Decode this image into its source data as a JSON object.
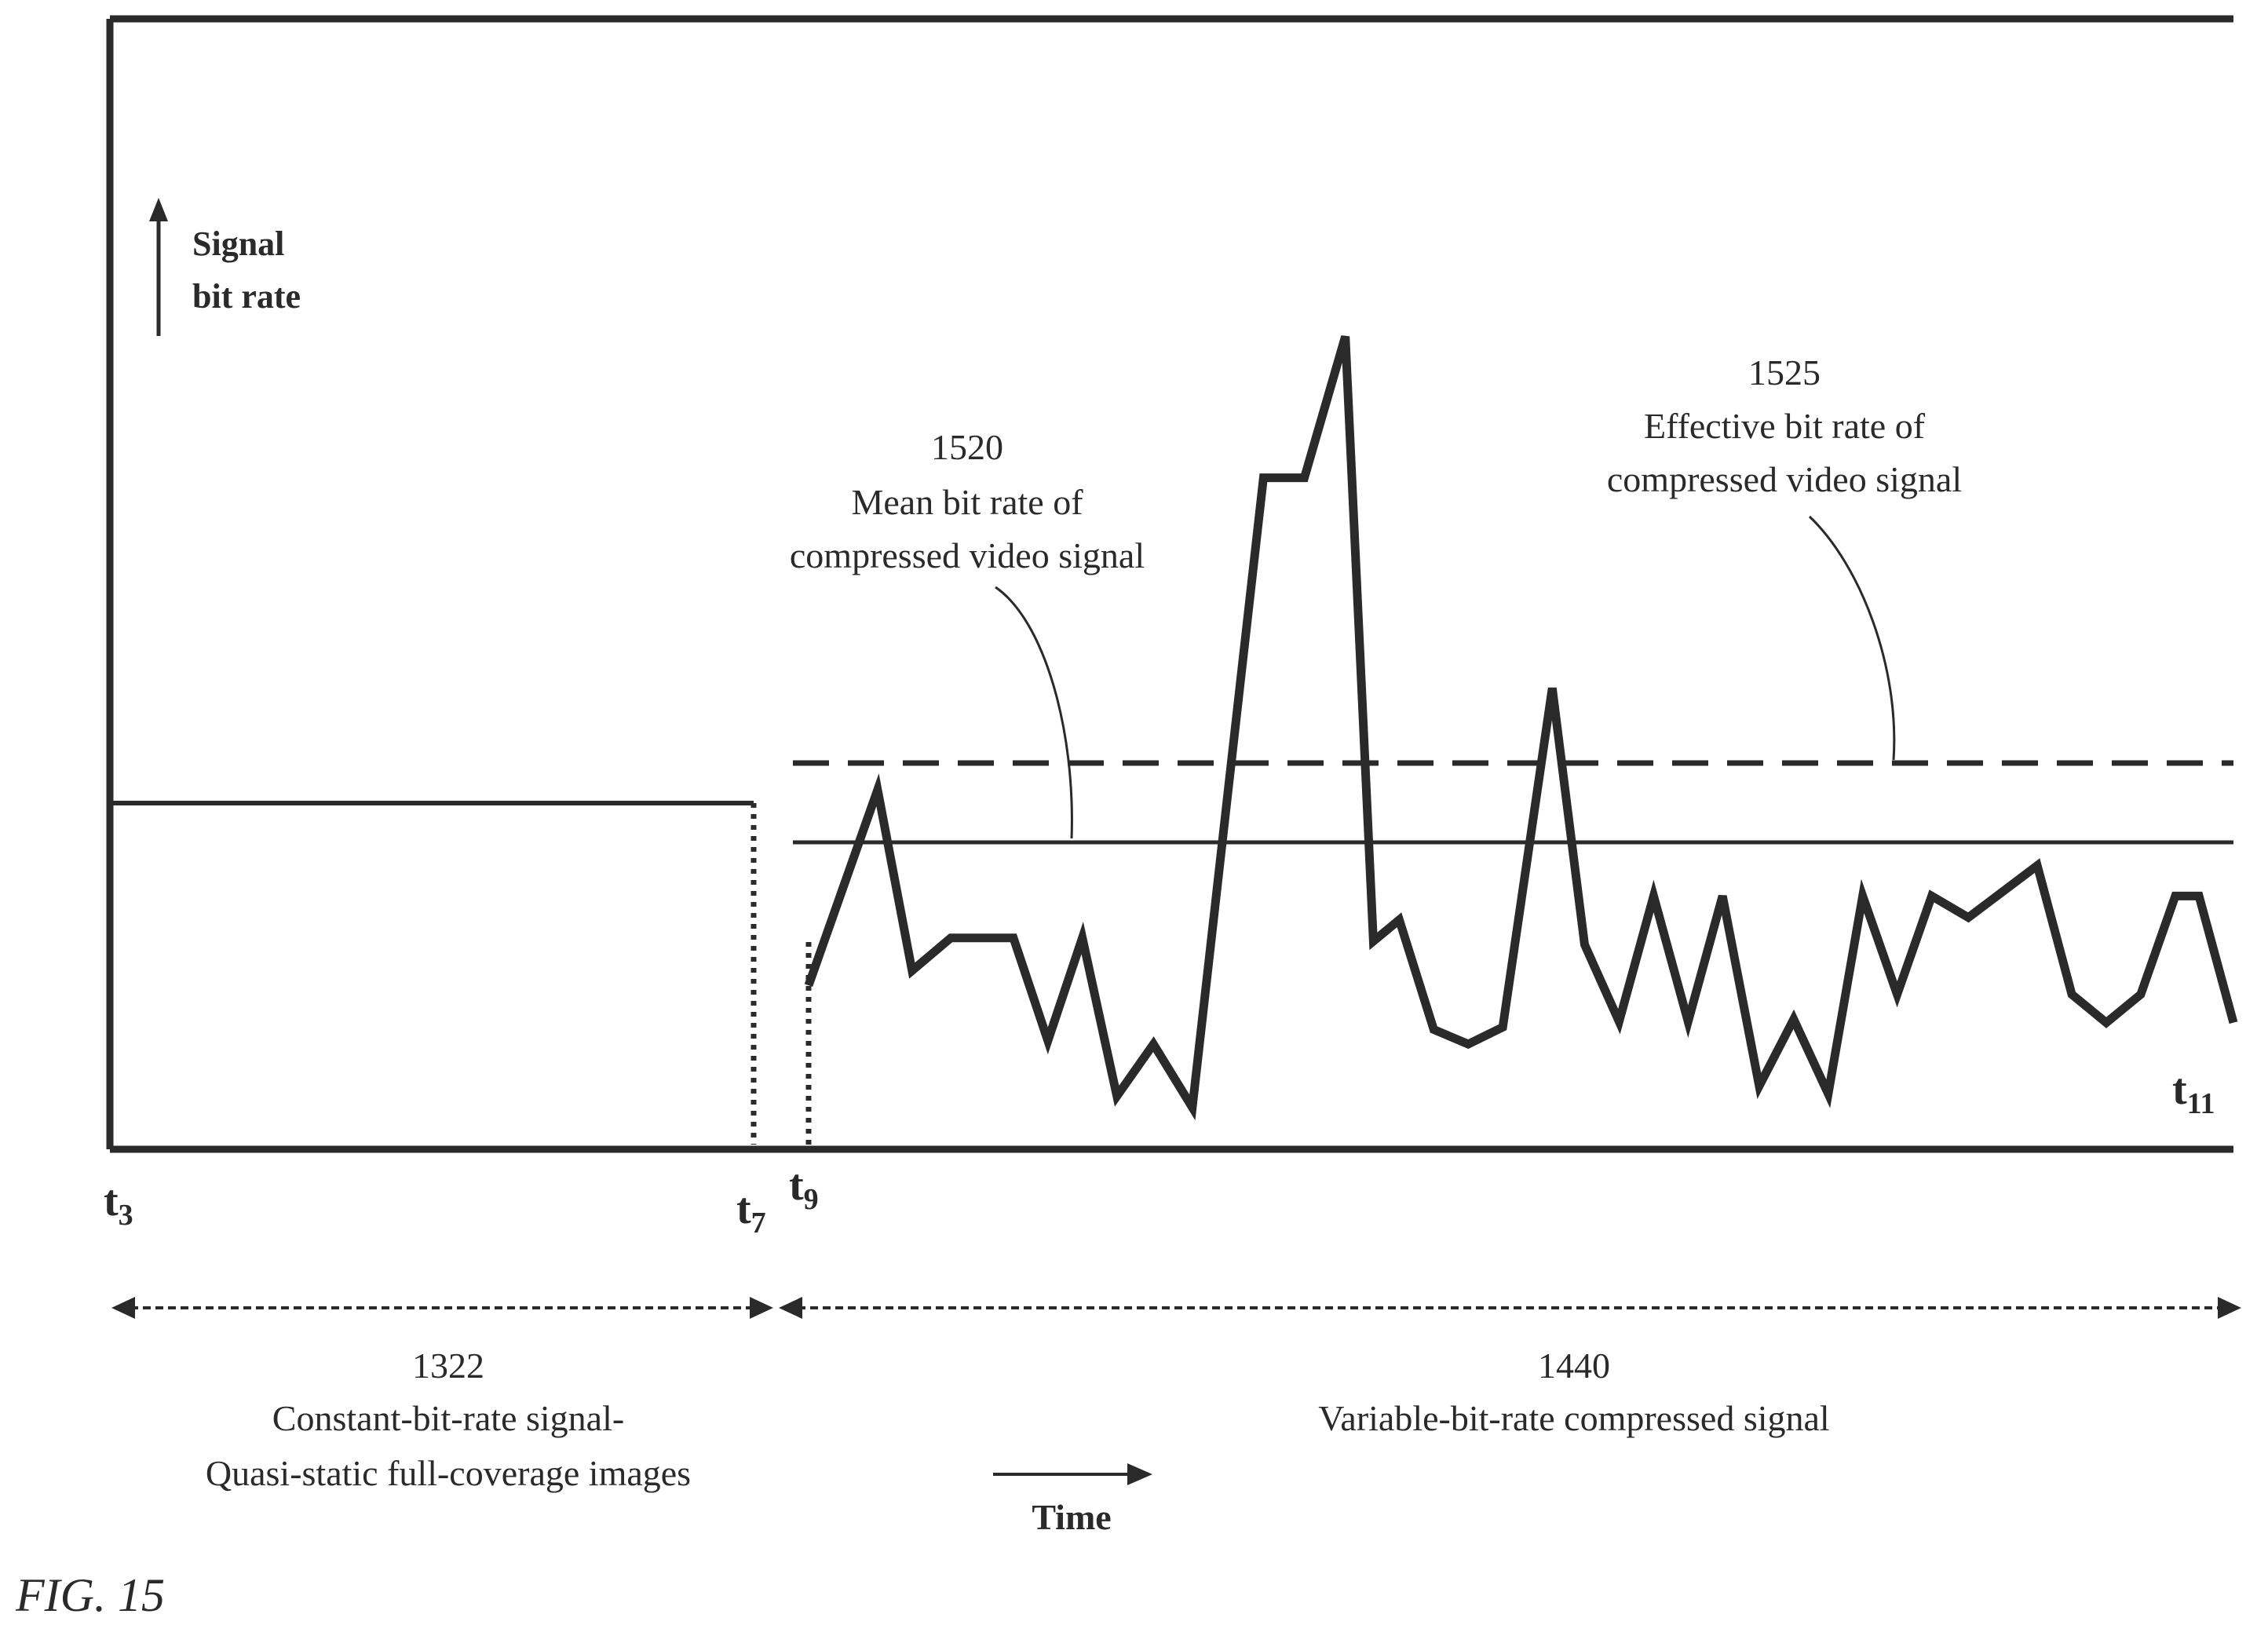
{
  "y_axis": {
    "line1": "Signal",
    "line2": "bit rate"
  },
  "time_labels": {
    "t3": {
      "base": "t",
      "sub": "3"
    },
    "t7": {
      "base": "t",
      "sub": "7"
    },
    "t9": {
      "base": "t",
      "sub": "9"
    },
    "t11": {
      "base": "t",
      "sub": "11"
    }
  },
  "callouts": {
    "mean": {
      "ref": "1520",
      "line1": "Mean bit rate of",
      "line2": "compressed video signal"
    },
    "effective": {
      "ref": "1525",
      "line1": "Effective bit rate of",
      "line2": "compressed video signal"
    }
  },
  "spans": {
    "left": {
      "ref": "1322",
      "line1": "Constant-bit-rate signal-",
      "line2": "Quasi-static full-coverage images"
    },
    "right": {
      "ref": "1440",
      "line1": "Variable-bit-rate compressed signal"
    }
  },
  "time_arrow": {
    "label": "Time"
  },
  "figure_label": "FIG. 15",
  "signal": {
    "constant_level": 0.225,
    "mean_level": 0.198,
    "effective_level": 0.267,
    "segments": [
      {
        "t": 0.0,
        "v": 0.225
      },
      {
        "t": 0.308,
        "v": 0.225
      }
    ],
    "variable": [
      [
        0.0,
        0.145
      ],
      [
        0.032,
        0.318
      ],
      [
        0.048,
        0.158
      ],
      [
        0.066,
        0.187
      ],
      [
        0.095,
        0.187
      ],
      [
        0.111,
        0.096
      ],
      [
        0.127,
        0.187
      ],
      [
        0.143,
        0.047
      ],
      [
        0.16,
        0.093
      ],
      [
        0.178,
        0.037
      ],
      [
        0.211,
        0.594
      ],
      [
        0.23,
        0.594
      ],
      [
        0.249,
        0.719
      ],
      [
        0.262,
        0.184
      ],
      [
        0.274,
        0.203
      ],
      [
        0.29,
        0.106
      ],
      [
        0.306,
        0.093
      ],
      [
        0.322,
        0.108
      ],
      [
        0.345,
        0.408
      ],
      [
        0.36,
        0.181
      ],
      [
        0.376,
        0.113
      ],
      [
        0.392,
        0.224
      ],
      [
        0.408,
        0.113
      ],
      [
        0.424,
        0.224
      ],
      [
        0.441,
        0.056
      ],
      [
        0.457,
        0.115
      ],
      [
        0.473,
        0.049
      ],
      [
        0.489,
        0.224
      ],
      [
        0.505,
        0.137
      ],
      [
        0.521,
        0.224
      ],
      [
        0.538,
        0.205
      ],
      [
        0.57,
        0.251
      ],
      [
        0.586,
        0.137
      ],
      [
        0.602,
        0.112
      ],
      [
        0.618,
        0.137
      ],
      [
        0.634,
        0.224
      ],
      [
        0.645,
        0.224
      ],
      [
        0.661,
        0.112
      ]
    ]
  },
  "colors": {
    "ink": "#2a2a2a"
  }
}
